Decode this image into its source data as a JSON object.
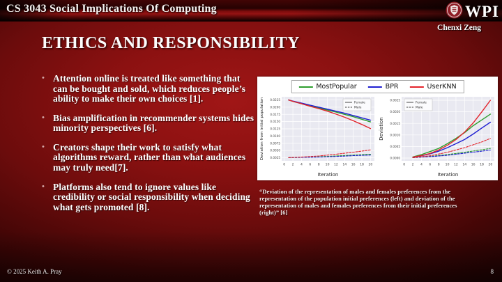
{
  "header": {
    "course": "CS 3043 Social Implications Of Computing",
    "wpi": "WPI",
    "author": "Chenxi Zeng"
  },
  "slide": {
    "title": "ETHICS AND RESPONSIBILITY",
    "bullets": [
      "Attention online is treated like something that can be bought and sold, which reduces people’s ability to make their own choices [1].",
      "Bias amplification in recommender systems hides minority perspectives [6].",
      "Creators shape their work to satisfy what algorithms reward, rather than what audiences may truly need[7].",
      "Platforms also tend to ignore values like credibility or social responsibility when deciding what gets promoted [8]."
    ],
    "caption": "“Deviation of the representation of males and females preferences from the representation of the population initial preferences (left) and deviation of the representation of males and females preferences from their initial preferences (right)” [6]"
  },
  "footer": {
    "copyright": "© 2025 Keith A. Pray",
    "page": "8"
  },
  "chart_data": {
    "type": "line",
    "figure_background": "#ffffff",
    "plot_background": "#e9e9f1",
    "legend_position": "top-center",
    "legend": [
      {
        "name": "MostPopular",
        "color": "#2e9e2e"
      },
      {
        "name": "BPR",
        "color": "#1f1fd1"
      },
      {
        "name": "UserKNN",
        "color": "#e3242b"
      }
    ],
    "sub_legend": [
      "Female",
      "Male"
    ],
    "plots": [
      {
        "xlabel": "Iteration",
        "ylabel": "Deviation from initial population",
        "xlim": [
          -0.6,
          20.9
        ],
        "ylim": [
          0.0014,
          0.0236
        ],
        "xticks": [
          0,
          2,
          4,
          6,
          8,
          10,
          12,
          14,
          16,
          18,
          20
        ],
        "yticks": [
          0.0025,
          0.005,
          0.0075,
          0.01,
          0.0125,
          0.015,
          0.0175,
          0.02,
          0.0225
        ],
        "legend_pos": "top-right",
        "series": [
          {
            "name": "MostPopular",
            "group": "Female",
            "style": "solid",
            "x": [
              1,
              2,
              4,
              6,
              8,
              10,
              12,
              14,
              16,
              18,
              20
            ],
            "y": [
              0.0225,
              0.022,
              0.0212,
              0.0204,
              0.0197,
              0.019,
              0.0183,
              0.0175,
              0.0167,
              0.0158,
              0.0149
            ]
          },
          {
            "name": "BPR",
            "group": "Female",
            "style": "solid",
            "x": [
              1,
              2,
              4,
              6,
              8,
              10,
              12,
              14,
              16,
              18,
              20
            ],
            "y": [
              0.0225,
              0.0221,
              0.0214,
              0.0207,
              0.02,
              0.0193,
              0.0186,
              0.0179,
              0.0171,
              0.0163,
              0.0155
            ]
          },
          {
            "name": "UserKNN",
            "group": "Female",
            "style": "solid",
            "x": [
              1,
              2,
              4,
              6,
              8,
              10,
              12,
              14,
              16,
              18,
              20
            ],
            "y": [
              0.0225,
              0.022,
              0.0212,
              0.0203,
              0.0195,
              0.0186,
              0.0176,
              0.0165,
              0.0153,
              0.014,
              0.0126
            ]
          },
          {
            "name": "MostPopular",
            "group": "Male",
            "style": "dashed",
            "x": [
              1,
              4,
              8,
              12,
              16,
              20
            ],
            "y": [
              0.0025,
              0.0026,
              0.0028,
              0.0031,
              0.0034,
              0.0037
            ]
          },
          {
            "name": "BPR",
            "group": "Male",
            "style": "dashed",
            "x": [
              1,
              4,
              8,
              12,
              16,
              20
            ],
            "y": [
              0.0025,
              0.0026,
              0.0027,
              0.0029,
              0.0032,
              0.0034
            ]
          },
          {
            "name": "UserKNN",
            "group": "Male",
            "style": "dashed",
            "x": [
              1,
              4,
              8,
              12,
              16,
              20
            ],
            "y": [
              0.0025,
              0.0027,
              0.0031,
              0.0037,
              0.0044,
              0.0052
            ]
          }
        ]
      },
      {
        "xlabel": "Iteration",
        "ylabel": "Deviation",
        "xlim": [
          -0.6,
          20.9
        ],
        "ylim": [
          -0.00012,
          0.00265
        ],
        "xticks": [
          0,
          2,
          4,
          6,
          8,
          10,
          12,
          14,
          16,
          18,
          20
        ],
        "yticks": [
          0,
          0.0005,
          0.001,
          0.0015,
          0.002,
          0.0025
        ],
        "legend_pos": "top-left",
        "series": [
          {
            "name": "MostPopular",
            "group": "Female",
            "style": "solid",
            "x": [
              2,
              4,
              6,
              8,
              10,
              12,
              14,
              16,
              18,
              20
            ],
            "y": [
              5e-05,
              0.00015,
              0.00028,
              0.00042,
              0.00062,
              0.00085,
              0.0011,
              0.0014,
              0.00165,
              0.0019
            ]
          },
          {
            "name": "BPR",
            "group": "Female",
            "style": "solid",
            "x": [
              2,
              4,
              6,
              8,
              10,
              12,
              14,
              16,
              18,
              20
            ],
            "y": [
              3e-05,
              0.0001,
              0.00018,
              0.0003,
              0.00045,
              0.00062,
              0.0008,
              0.00104,
              0.0013,
              0.00155
            ]
          },
          {
            "name": "UserKNN",
            "group": "Female",
            "style": "solid",
            "x": [
              2,
              4,
              6,
              8,
              10,
              12,
              14,
              16,
              18,
              20
            ],
            "y": [
              4e-05,
              0.00011,
              0.0002,
              0.00035,
              0.00055,
              0.0008,
              0.00112,
              0.00152,
              0.002,
              0.0025
            ]
          },
          {
            "name": "MostPopular",
            "group": "Male",
            "style": "dashed",
            "x": [
              2,
              6,
              10,
              14,
              18,
              20
            ],
            "y": [
              2e-05,
              7e-05,
              0.00015,
              0.00025,
              0.00036,
              0.00042
            ]
          },
          {
            "name": "BPR",
            "group": "Male",
            "style": "dashed",
            "x": [
              2,
              6,
              10,
              14,
              18,
              20
            ],
            "y": [
              2e-05,
              6e-05,
              0.00012,
              0.00021,
              0.0003,
              0.00035
            ]
          },
          {
            "name": "UserKNN",
            "group": "Male",
            "style": "dashed",
            "x": [
              2,
              6,
              10,
              14,
              18,
              20
            ],
            "y": [
              2e-05,
              0.0001,
              0.00025,
              0.00045,
              0.0007,
              0.00085
            ]
          }
        ]
      }
    ]
  }
}
